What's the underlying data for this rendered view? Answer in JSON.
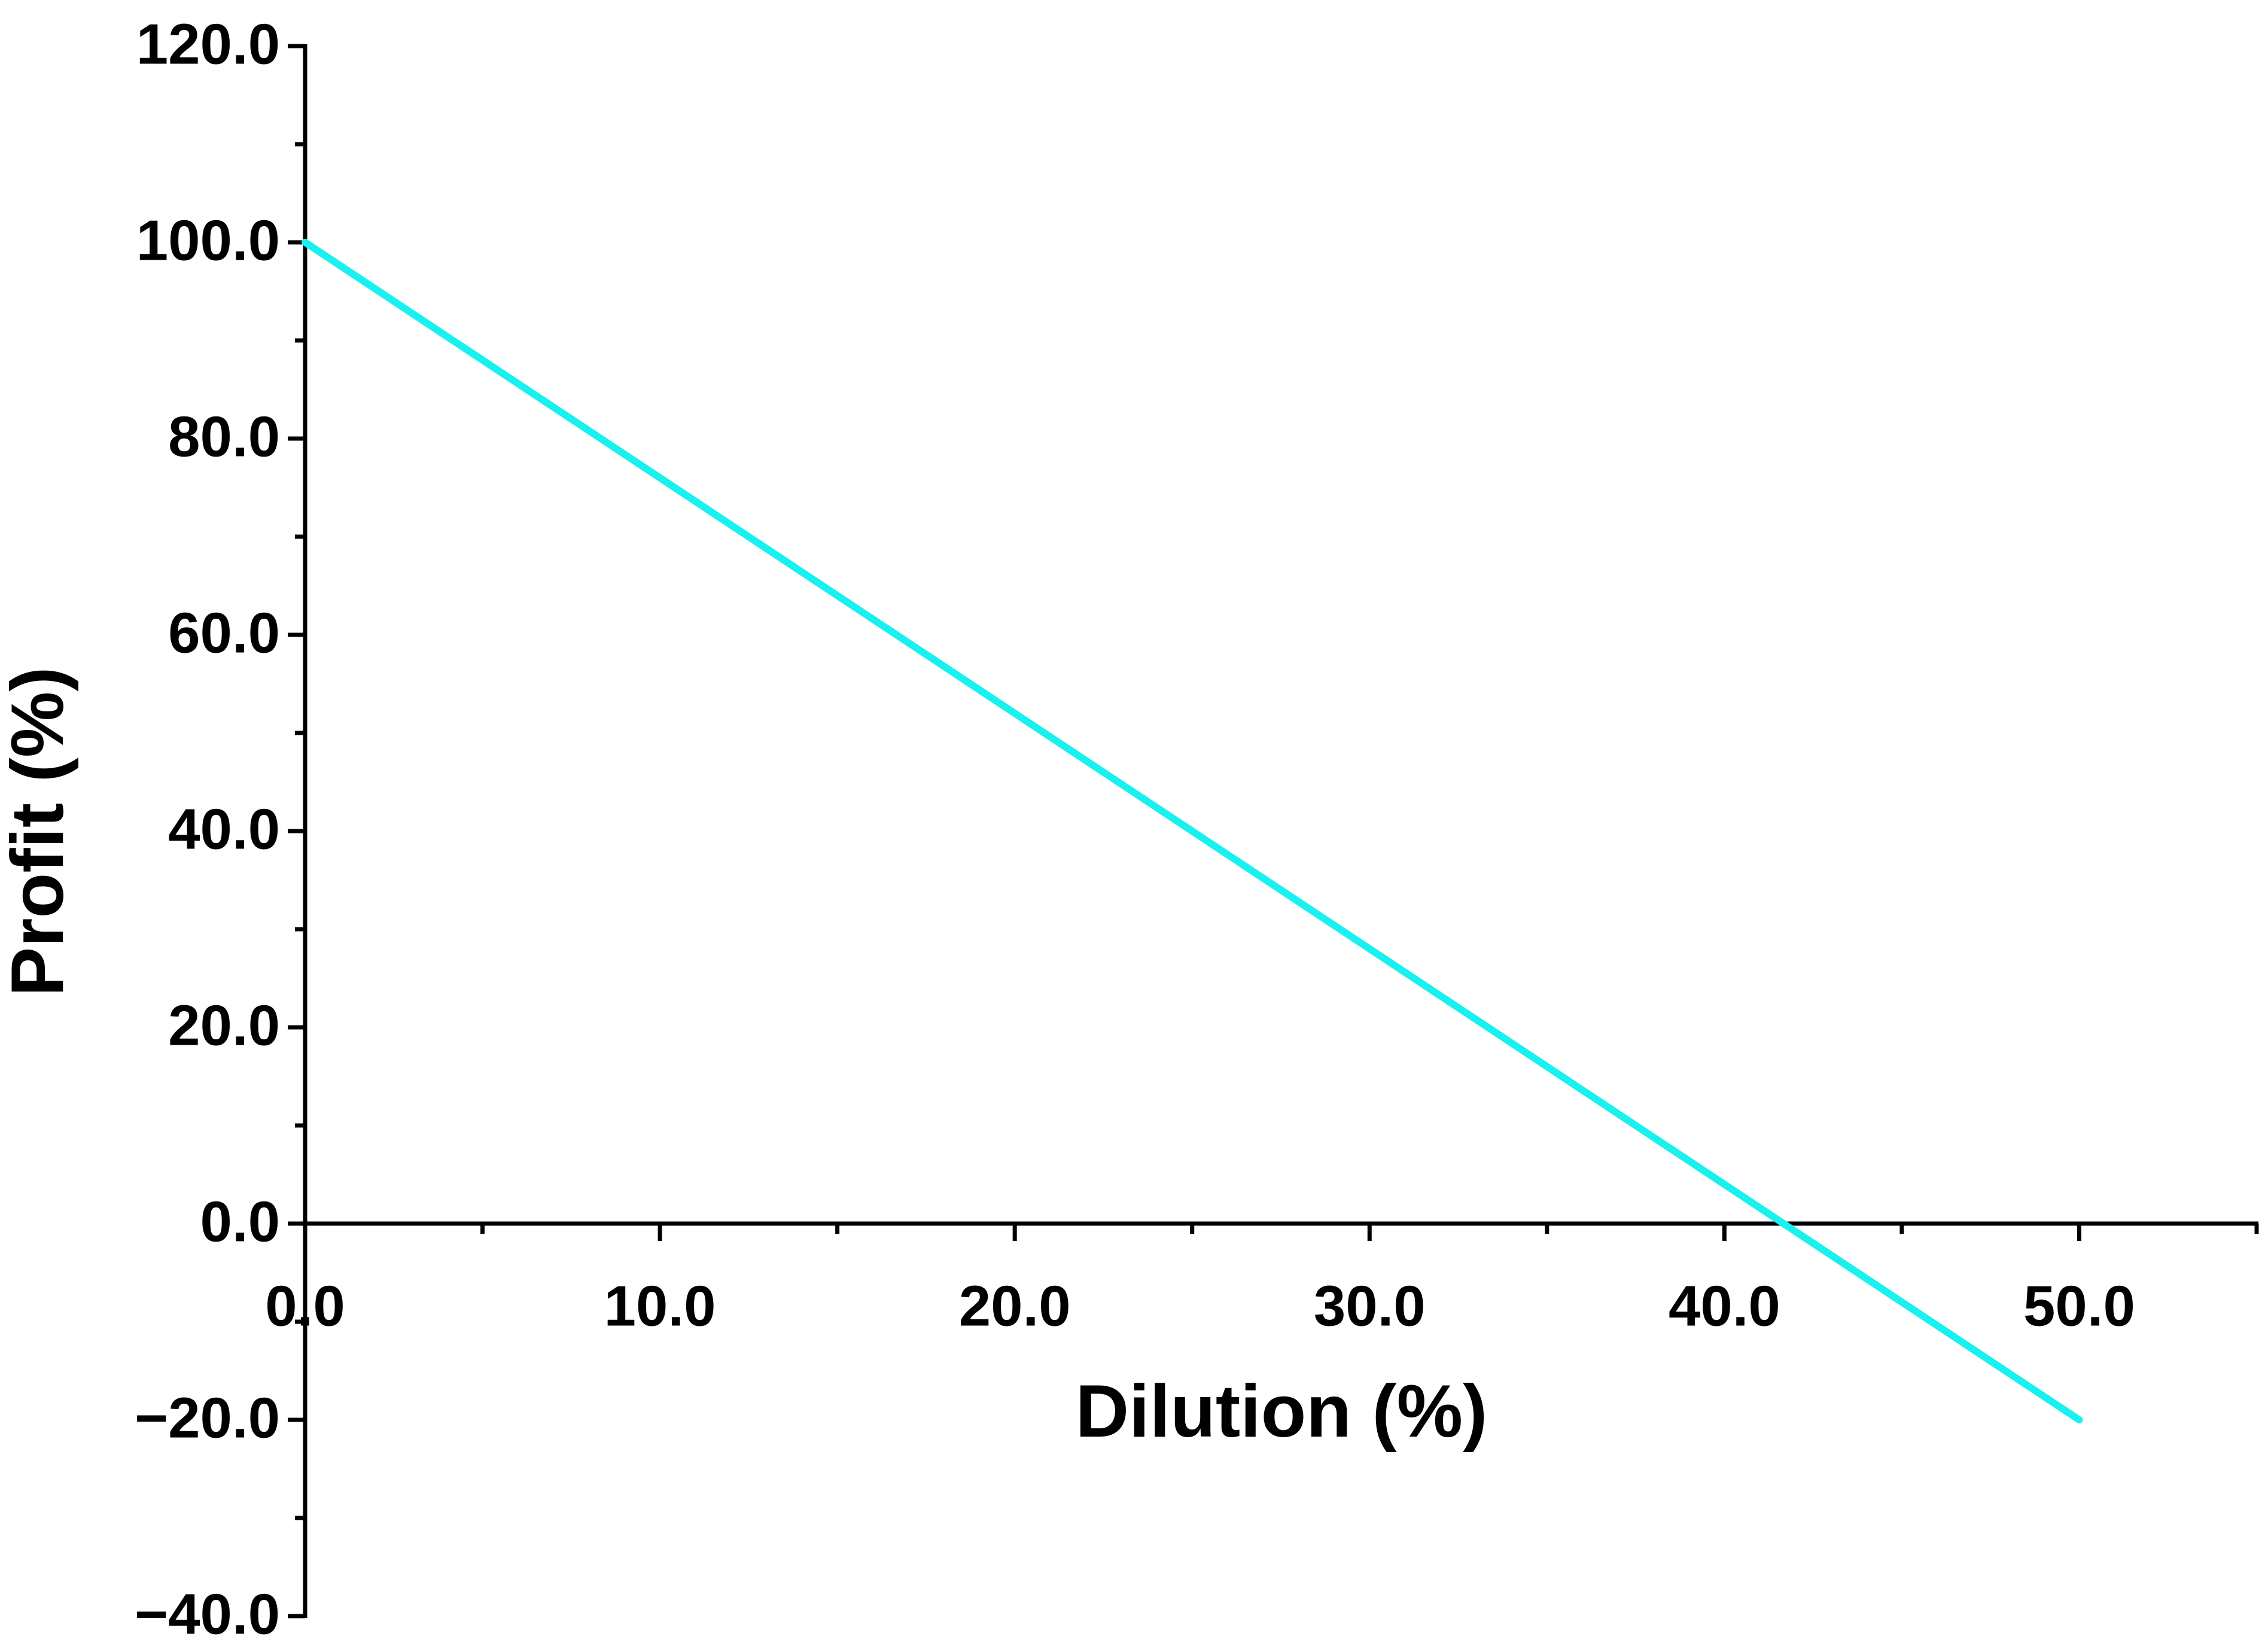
{
  "chart_data": {
    "type": "line",
    "x_label": "Dilution (%)",
    "y_label": "Profit (%)",
    "x": [
      0,
      50
    ],
    "series": [
      {
        "name": "Profit",
        "color": "#19f0f0",
        "values": [
          100,
          -20
        ]
      }
    ],
    "xlim": [
      0,
      55
    ],
    "ylim": [
      -40,
      120
    ],
    "xticks": [
      {
        "value": 0,
        "label": "0.0"
      },
      {
        "value": 10,
        "label": "10.0"
      },
      {
        "value": 20,
        "label": "20.0"
      },
      {
        "value": 30,
        "label": "30.0"
      },
      {
        "value": 40,
        "label": "40.0"
      },
      {
        "value": 50,
        "label": "50.0"
      }
    ],
    "yticks": [
      {
        "value": -40,
        "label": "−40.0"
      },
      {
        "value": -20,
        "label": "−20.0"
      },
      {
        "value": 0,
        "label": "0.0"
      },
      {
        "value": 20,
        "label": "20.0"
      },
      {
        "value": 40,
        "label": "40.0"
      },
      {
        "value": 60,
        "label": "60.0"
      },
      {
        "value": 80,
        "label": "80.0"
      },
      {
        "value": 100,
        "label": "100.0"
      },
      {
        "value": 120,
        "label": "120.0"
      }
    ],
    "xminorticks": [
      5,
      15,
      25,
      35,
      45,
      55
    ],
    "yminorticks": [
      -30,
      -10,
      10,
      30,
      50,
      70,
      90,
      110
    ],
    "legend": false,
    "grid": false
  }
}
